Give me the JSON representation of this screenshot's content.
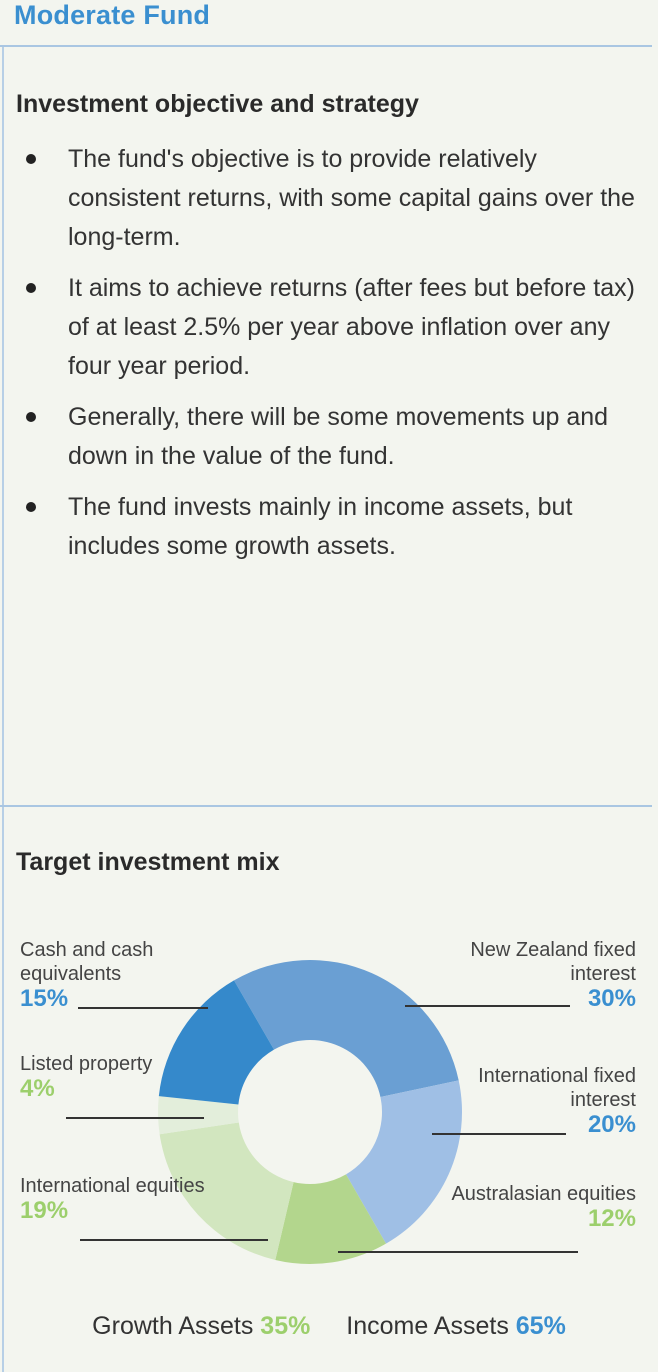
{
  "title": "Moderate Fund",
  "objective": {
    "heading": "Investment objective and strategy",
    "bullets": [
      "The fund's objective is to provide relatively consistent returns, with some capital gains over the long-term.",
      "It aims to achieve returns (after fees but before tax) of at least 2.5% per year above inflation over any four year period.",
      "Generally, there will be some movements up and down in the value of the fund.",
      "The fund invests mainly in income assets, but includes some growth assets."
    ]
  },
  "mix": {
    "heading": "Target investment mix",
    "growth_label": "Growth Assets",
    "growth_value": "35%",
    "income_label": "Income Assets",
    "income_value": "65%"
  },
  "colors": {
    "title": "#3a8fd0",
    "income_pct": "#3a8fd0",
    "growth_pct": "#9ccf6c"
  },
  "chart_data": {
    "type": "pie",
    "donut": true,
    "title": "Target investment mix",
    "slices": [
      {
        "label": "New Zealand fixed interest",
        "value": 30,
        "display": "30%",
        "color": "#6a9fd3",
        "pct_color": "#3a8fd0",
        "side": "right"
      },
      {
        "label": "International fixed interest",
        "value": 20,
        "display": "20%",
        "color": "#9fbfe5",
        "pct_color": "#3a8fd0",
        "side": "right"
      },
      {
        "label": "Australasian equities",
        "value": 12,
        "display": "12%",
        "color": "#b3d68d",
        "pct_color": "#9ccf6c",
        "side": "right"
      },
      {
        "label": "International equities",
        "value": 19,
        "display": "19%",
        "color": "#d2e6bf",
        "pct_color": "#9ccf6c",
        "side": "left"
      },
      {
        "label": "Listed property",
        "value": 4,
        "display": "4%",
        "color": "#e3eedb",
        "pct_color": "#9ccf6c",
        "side": "left"
      },
      {
        "label": "Cash and cash equivalents",
        "value": 15,
        "display": "15%",
        "color": "#3589cb",
        "pct_color": "#3a8fd0",
        "side": "left"
      }
    ]
  }
}
